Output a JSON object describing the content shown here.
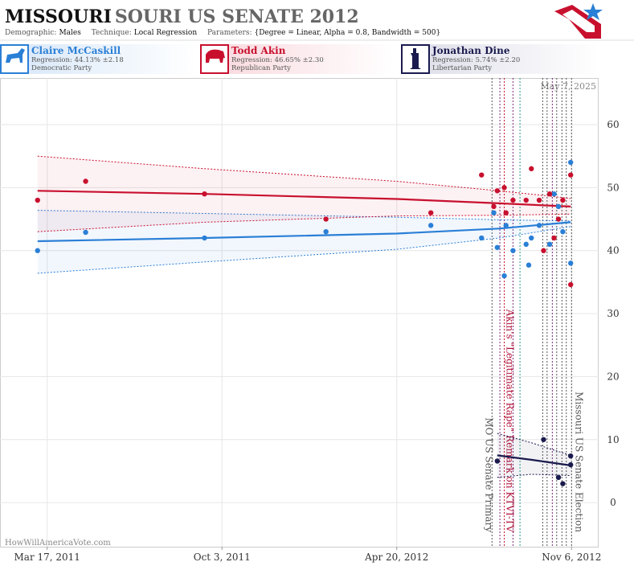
{
  "header": {
    "title_main": "MISSOURI",
    "title_rest": "SOURI US SENATE 2012",
    "parameters": [
      {
        "label": "Demographic:",
        "value": "Males"
      },
      {
        "label": "Technique:",
        "value": "Local Regression"
      },
      {
        "label": "Parameters:",
        "value": "{Degree = Linear, Alpha = 0.8, Bandwidth = 500}"
      }
    ]
  },
  "candidates": [
    {
      "name": "Claire McCaskill",
      "regression": "Regression: 44.13% ±2.18",
      "party": "Democratic Party"
    },
    {
      "name": "Todd Akin",
      "regression": "Regression: 46.65% ±2.30",
      "party": "Republican Party"
    },
    {
      "name": "Jonathan Dine",
      "regression": "Regression: 5.74% ±2.20",
      "party": "Libertarian Party"
    }
  ],
  "chart_data": {
    "type": "scatter",
    "date_stamp": "May 7, 2025",
    "credit": "HowWillAmericaVote.com",
    "xlim": [
      "2011-01-22",
      "2012-12-07"
    ],
    "xticks": [
      {
        "value": "2011-03-17",
        "label": "Mar 17, 2011"
      },
      {
        "value": "2011-10-03",
        "label": "Oct 3, 2011"
      },
      {
        "value": "2012-04-20",
        "label": "Apr 20, 2012"
      },
      {
        "value": "2012-11-06",
        "label": "Nov 6, 2012"
      }
    ],
    "ylim": [
      -7,
      67.4
    ],
    "yticks": [
      0,
      10,
      20,
      30,
      40,
      50,
      60
    ],
    "grid": true,
    "series": [
      {
        "name": "Claire McCaskill",
        "color": "#2a7fd6",
        "x": [
          "2011-03-06",
          "2011-04-30",
          "2011-09-13",
          "2012-01-30",
          "2012-05-29",
          "2012-07-26",
          "2012-08-09",
          "2012-08-13",
          "2012-08-21",
          "2012-08-23",
          "2012-08-31",
          "2012-09-15",
          "2012-09-18",
          "2012-09-21",
          "2012-09-30",
          "2012-10-12",
          "2012-10-17",
          "2012-10-22",
          "2012-10-27",
          "2012-11-05",
          "2012-11-05"
        ],
        "values": [
          40,
          42.9,
          42,
          43,
          44,
          42,
          46,
          40.5,
          36,
          44,
          40,
          41,
          37.7,
          42,
          44,
          41,
          49,
          47,
          43,
          54,
          38
        ],
        "fit": {
          "x": [
            "2011-03-06",
            "2011-09-13",
            "2012-04-20",
            "2012-08-15",
            "2012-11-05"
          ],
          "values": [
            41.5,
            42,
            42.7,
            43.5,
            44.5
          ],
          "upper": [
            46.4,
            45.9,
            45.3,
            44.9,
            44.7
          ],
          "lower": [
            36.4,
            38.2,
            40.2,
            42,
            43.8
          ]
        }
      },
      {
        "name": "Todd Akin",
        "color": "#c8102e",
        "x": [
          "2011-03-06",
          "2011-04-30",
          "2011-09-13",
          "2012-01-30",
          "2012-05-29",
          "2012-07-26",
          "2012-08-09",
          "2012-08-13",
          "2012-08-21",
          "2012-08-23",
          "2012-08-31",
          "2012-09-15",
          "2012-09-21",
          "2012-09-30",
          "2012-10-05",
          "2012-10-12",
          "2012-10-17",
          "2012-10-22",
          "2012-10-27",
          "2012-11-05",
          "2012-11-05"
        ],
        "values": [
          48,
          51,
          49,
          45,
          46,
          52,
          47,
          49.5,
          50,
          46,
          48,
          48,
          53,
          48,
          40,
          49,
          42,
          45,
          48,
          52,
          34.6
        ],
        "fit": {
          "x": [
            "2011-03-06",
            "2011-09-13",
            "2012-04-20",
            "2012-08-15",
            "2012-11-05"
          ],
          "values": [
            49.5,
            49,
            48.2,
            47.5,
            47
          ],
          "upper": [
            55,
            53,
            51,
            49.5,
            48.3
          ],
          "lower": [
            43,
            44.5,
            45.5,
            45.6,
            45.8
          ]
        }
      },
      {
        "name": "Jonathan Dine",
        "color": "#1a1a4e",
        "x": [
          "2012-08-13",
          "2012-10-05",
          "2012-10-22",
          "2012-10-27",
          "2012-11-05",
          "2012-11-05"
        ],
        "values": [
          6.6,
          10,
          4,
          3,
          7.4,
          6
        ],
        "fit": {
          "x": [
            "2012-08-13",
            "2012-09-21",
            "2012-11-05"
          ],
          "values": [
            7.5,
            6.8,
            5.9
          ],
          "upper": [
            11,
            9.5,
            7.5
          ],
          "lower": [
            4,
            4.5,
            4.3
          ]
        }
      }
    ],
    "events": [
      {
        "date": "2012-08-07",
        "color": "#555"
      },
      {
        "date": "2012-08-16",
        "color": "#7a2a7a"
      },
      {
        "date": "2012-08-21",
        "color": "#c8102e"
      },
      {
        "date": "2012-08-31",
        "color": "#7a2a7a"
      },
      {
        "date": "2012-09-08",
        "color": "#2a9a8a"
      },
      {
        "date": "2012-10-04",
        "color": "#555"
      },
      {
        "date": "2012-10-09",
        "color": "#555"
      },
      {
        "date": "2012-10-15",
        "color": "#7a2a7a"
      },
      {
        "date": "2012-10-20",
        "color": "#555"
      },
      {
        "date": "2012-10-26",
        "color": "#555"
      },
      {
        "date": "2012-10-31",
        "color": "#555"
      },
      {
        "date": "2012-11-06",
        "color": "#555"
      }
    ],
    "annotations": [
      {
        "date": "2012-08-07",
        "text": "MO US Senate Primary",
        "color": "#555",
        "side": "left"
      },
      {
        "date": "2012-08-19",
        "text": "Akin's \"Legitimate Rape\" Remark on KTVI-TV",
        "color": "#b0103a",
        "side": "right"
      },
      {
        "date": "2012-11-06",
        "text": "Missouri US Senate Election",
        "color": "#555",
        "side": "right"
      }
    ]
  }
}
